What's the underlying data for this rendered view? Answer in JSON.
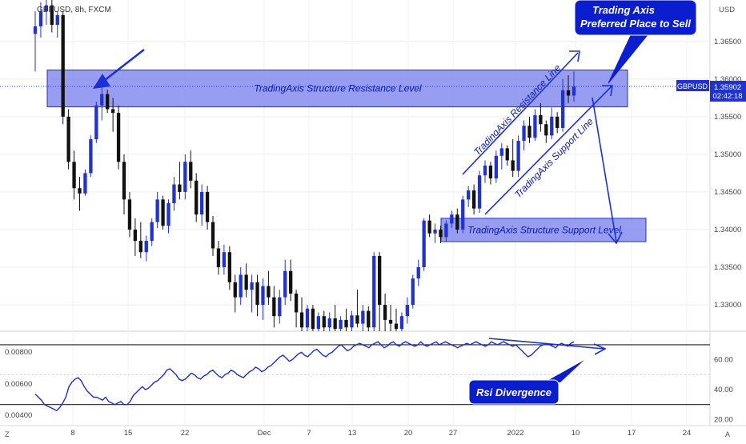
{
  "header": {
    "symbol_info": "GBPUSD, 8h, FXCM",
    "currency": "USD"
  },
  "price_tag": {
    "symbol": "GBPUSD",
    "price": "1.35902",
    "countdown": "02:42:18"
  },
  "annotations": {
    "sell_callout_line1": "Trading Axis",
    "sell_callout_line2": "Preferred Place to Sell",
    "resistance_zone": "TradingAxis Structure Resistance Level",
    "support_zone": "TradingAxis Structure Support Level",
    "resistance_line": "TradingAxis Resistance Line",
    "support_line": "TradingAxis Support Line",
    "rsi_callout": "Rsi Divergence"
  },
  "time_axis": {
    "left_marker": "Z",
    "right_marker": "A",
    "labels": [
      "8",
      "15",
      "22",
      "Dec",
      "7",
      "13",
      "20",
      "27",
      "2022",
      "10",
      "17",
      "24"
    ]
  },
  "colors": {
    "bull": "#2132d3",
    "bear": "#111111",
    "zone_fill": "#6f77ea",
    "zone_border": "#2130c8",
    "annotation_blue": "#1a2fd6",
    "callout_bg": "#0a1ed0",
    "rsi_line": "#1e2ec8",
    "price_tag_bg": "#2132d3"
  },
  "chart_data": [
    {
      "type": "candlestick",
      "title": "GBPUSD, 8h, FXCM",
      "y_ticks": [
        "1.36500",
        "1.36000",
        "1.35500",
        "1.35000",
        "1.34500",
        "1.34000",
        "1.33500",
        "1.33000"
      ],
      "ylim": [
        1.3265,
        1.3705
      ],
      "current_price": 1.35902,
      "resistance_zone": [
        1.3563,
        1.3612
      ],
      "support_zone": [
        1.3384,
        1.3415
      ],
      "candles": [
        {
          "o": 1.366,
          "h": 1.369,
          "l": 1.361,
          "c": 1.367
        },
        {
          "o": 1.367,
          "h": 1.3702,
          "l": 1.3655,
          "c": 1.369
        },
        {
          "o": 1.369,
          "h": 1.371,
          "l": 1.3672,
          "c": 1.3698
        },
        {
          "o": 1.3698,
          "h": 1.3705,
          "l": 1.3662,
          "c": 1.3672
        },
        {
          "o": 1.3672,
          "h": 1.369,
          "l": 1.3655,
          "c": 1.3685
        },
        {
          "o": 1.3685,
          "h": 1.369,
          "l": 1.354,
          "c": 1.355
        },
        {
          "o": 1.355,
          "h": 1.356,
          "l": 1.348,
          "c": 1.349
        },
        {
          "o": 1.349,
          "h": 1.3505,
          "l": 1.344,
          "c": 1.3455
        },
        {
          "o": 1.3455,
          "h": 1.347,
          "l": 1.3425,
          "c": 1.3448
        },
        {
          "o": 1.3448,
          "h": 1.348,
          "l": 1.3445,
          "c": 1.3475
        },
        {
          "o": 1.3475,
          "h": 1.3525,
          "l": 1.347,
          "c": 1.352
        },
        {
          "o": 1.352,
          "h": 1.357,
          "l": 1.3515,
          "c": 1.3565
        },
        {
          "o": 1.3565,
          "h": 1.36,
          "l": 1.3545,
          "c": 1.358
        },
        {
          "o": 1.358,
          "h": 1.3586,
          "l": 1.3555,
          "c": 1.356
        },
        {
          "o": 1.356,
          "h": 1.3575,
          "l": 1.353,
          "c": 1.3555
        },
        {
          "o": 1.3555,
          "h": 1.3565,
          "l": 1.348,
          "c": 1.349
        },
        {
          "o": 1.349,
          "h": 1.35,
          "l": 1.342,
          "c": 1.344
        },
        {
          "o": 1.344,
          "h": 1.345,
          "l": 1.339,
          "c": 1.34
        },
        {
          "o": 1.34,
          "h": 1.3415,
          "l": 1.3365,
          "c": 1.3385
        },
        {
          "o": 1.3385,
          "h": 1.341,
          "l": 1.3362,
          "c": 1.337
        },
        {
          "o": 1.337,
          "h": 1.3392,
          "l": 1.3358,
          "c": 1.3385
        },
        {
          "o": 1.3385,
          "h": 1.3415,
          "l": 1.3378,
          "c": 1.341
        },
        {
          "o": 1.341,
          "h": 1.345,
          "l": 1.3402,
          "c": 1.344
        },
        {
          "o": 1.344,
          "h": 1.3445,
          "l": 1.34,
          "c": 1.3405
        },
        {
          "o": 1.3405,
          "h": 1.344,
          "l": 1.3395,
          "c": 1.3435
        },
        {
          "o": 1.3435,
          "h": 1.347,
          "l": 1.3425,
          "c": 1.346
        },
        {
          "o": 1.346,
          "h": 1.349,
          "l": 1.344,
          "c": 1.345
        },
        {
          "o": 1.345,
          "h": 1.35,
          "l": 1.344,
          "c": 1.349
        },
        {
          "o": 1.349,
          "h": 1.3505,
          "l": 1.3455,
          "c": 1.3465
        },
        {
          "o": 1.3465,
          "h": 1.3475,
          "l": 1.341,
          "c": 1.342
        },
        {
          "o": 1.342,
          "h": 1.346,
          "l": 1.3405,
          "c": 1.345
        },
        {
          "o": 1.345,
          "h": 1.3458,
          "l": 1.34,
          "c": 1.341
        },
        {
          "o": 1.341,
          "h": 1.3418,
          "l": 1.3365,
          "c": 1.3375
        },
        {
          "o": 1.3375,
          "h": 1.3385,
          "l": 1.334,
          "c": 1.335
        },
        {
          "o": 1.335,
          "h": 1.338,
          "l": 1.334,
          "c": 1.337
        },
        {
          "o": 1.337,
          "h": 1.3378,
          "l": 1.332,
          "c": 1.333
        },
        {
          "o": 1.333,
          "h": 1.334,
          "l": 1.329,
          "c": 1.331
        },
        {
          "o": 1.331,
          "h": 1.335,
          "l": 1.33,
          "c": 1.334
        },
        {
          "o": 1.334,
          "h": 1.3355,
          "l": 1.331,
          "c": 1.332
        },
        {
          "o": 1.332,
          "h": 1.334,
          "l": 1.329,
          "c": 1.333
        },
        {
          "o": 1.333,
          "h": 1.334,
          "l": 1.3285,
          "c": 1.33
        },
        {
          "o": 1.33,
          "h": 1.3335,
          "l": 1.328,
          "c": 1.3325
        },
        {
          "o": 1.3325,
          "h": 1.3345,
          "l": 1.33,
          "c": 1.331
        },
        {
          "o": 1.331,
          "h": 1.3325,
          "l": 1.327,
          "c": 1.3285
        },
        {
          "o": 1.3285,
          "h": 1.332,
          "l": 1.3275,
          "c": 1.331
        },
        {
          "o": 1.331,
          "h": 1.336,
          "l": 1.33,
          "c": 1.3345
        },
        {
          "o": 1.3345,
          "h": 1.336,
          "l": 1.3305,
          "c": 1.3315
        },
        {
          "o": 1.3315,
          "h": 1.332,
          "l": 1.327,
          "c": 1.329
        },
        {
          "o": 1.329,
          "h": 1.331,
          "l": 1.3265,
          "c": 1.327
        },
        {
          "o": 1.327,
          "h": 1.33,
          "l": 1.3262,
          "c": 1.3295
        },
        {
          "o": 1.3295,
          "h": 1.33,
          "l": 1.3262,
          "c": 1.3268
        },
        {
          "o": 1.3268,
          "h": 1.329,
          "l": 1.3262,
          "c": 1.3285
        },
        {
          "o": 1.3285,
          "h": 1.3292,
          "l": 1.3262,
          "c": 1.327
        },
        {
          "o": 1.327,
          "h": 1.329,
          "l": 1.3262,
          "c": 1.3282
        },
        {
          "o": 1.3282,
          "h": 1.33,
          "l": 1.3262,
          "c": 1.3268
        },
        {
          "o": 1.3268,
          "h": 1.3285,
          "l": 1.3262,
          "c": 1.328
        },
        {
          "o": 1.328,
          "h": 1.3295,
          "l": 1.3262,
          "c": 1.327
        },
        {
          "o": 1.327,
          "h": 1.3292,
          "l": 1.3262,
          "c": 1.3286
        },
        {
          "o": 1.3286,
          "h": 1.332,
          "l": 1.327,
          "c": 1.3275
        },
        {
          "o": 1.3275,
          "h": 1.33,
          "l": 1.3262,
          "c": 1.3292
        },
        {
          "o": 1.3292,
          "h": 1.3298,
          "l": 1.3262,
          "c": 1.327
        },
        {
          "o": 1.327,
          "h": 1.337,
          "l": 1.3262,
          "c": 1.3365
        },
        {
          "o": 1.3365,
          "h": 1.337,
          "l": 1.3262,
          "c": 1.33
        },
        {
          "o": 1.33,
          "h": 1.3315,
          "l": 1.3262,
          "c": 1.328
        },
        {
          "o": 1.328,
          "h": 1.33,
          "l": 1.3262,
          "c": 1.3275
        },
        {
          "o": 1.3275,
          "h": 1.3295,
          "l": 1.3262,
          "c": 1.3268
        },
        {
          "o": 1.3268,
          "h": 1.329,
          "l": 1.3262,
          "c": 1.3285
        },
        {
          "o": 1.3285,
          "h": 1.331,
          "l": 1.3275,
          "c": 1.33
        },
        {
          "o": 1.33,
          "h": 1.334,
          "l": 1.3295,
          "c": 1.3335
        },
        {
          "o": 1.3335,
          "h": 1.336,
          "l": 1.3325,
          "c": 1.335
        },
        {
          "o": 1.335,
          "h": 1.3415,
          "l": 1.3345,
          "c": 1.3412
        },
        {
          "o": 1.3412,
          "h": 1.342,
          "l": 1.339,
          "c": 1.3395
        },
        {
          "o": 1.3395,
          "h": 1.3408,
          "l": 1.3382,
          "c": 1.34
        },
        {
          "o": 1.34,
          "h": 1.3405,
          "l": 1.3382,
          "c": 1.339
        },
        {
          "o": 1.339,
          "h": 1.3412,
          "l": 1.3384,
          "c": 1.3408
        },
        {
          "o": 1.3408,
          "h": 1.3425,
          "l": 1.3402,
          "c": 1.342
        },
        {
          "o": 1.342,
          "h": 1.3428,
          "l": 1.3395,
          "c": 1.34
        },
        {
          "o": 1.34,
          "h": 1.3445,
          "l": 1.3395,
          "c": 1.344
        },
        {
          "o": 1.344,
          "h": 1.3458,
          "l": 1.343,
          "c": 1.3452
        },
        {
          "o": 1.3452,
          "h": 1.346,
          "l": 1.342,
          "c": 1.3428
        },
        {
          "o": 1.3428,
          "h": 1.3478,
          "l": 1.3422,
          "c": 1.3472
        },
        {
          "o": 1.3472,
          "h": 1.3492,
          "l": 1.3462,
          "c": 1.3485
        },
        {
          "o": 1.3485,
          "h": 1.349,
          "l": 1.346,
          "c": 1.3468
        },
        {
          "o": 1.3468,
          "h": 1.3505,
          "l": 1.3462,
          "c": 1.3498
        },
        {
          "o": 1.3498,
          "h": 1.3515,
          "l": 1.348,
          "c": 1.3508
        },
        {
          "o": 1.3508,
          "h": 1.3512,
          "l": 1.3485,
          "c": 1.3492
        },
        {
          "o": 1.3492,
          "h": 1.352,
          "l": 1.347,
          "c": 1.3478
        },
        {
          "o": 1.3478,
          "h": 1.3525,
          "l": 1.347,
          "c": 1.3518
        },
        {
          "o": 1.3518,
          "h": 1.3545,
          "l": 1.3505,
          "c": 1.3538
        },
        {
          "o": 1.3538,
          "h": 1.355,
          "l": 1.3515,
          "c": 1.3522
        },
        {
          "o": 1.3522,
          "h": 1.356,
          "l": 1.3518,
          "c": 1.3552
        },
        {
          "o": 1.3552,
          "h": 1.3568,
          "l": 1.353,
          "c": 1.354
        },
        {
          "o": 1.354,
          "h": 1.3545,
          "l": 1.3515,
          "c": 1.3525
        },
        {
          "o": 1.3525,
          "h": 1.3562,
          "l": 1.352,
          "c": 1.355
        },
        {
          "o": 1.355,
          "h": 1.3556,
          "l": 1.3528,
          "c": 1.3535
        },
        {
          "o": 1.3535,
          "h": 1.36,
          "l": 1.353,
          "c": 1.3585
        },
        {
          "o": 1.3585,
          "h": 1.3605,
          "l": 1.3568,
          "c": 1.3578
        },
        {
          "o": 1.3578,
          "h": 1.361,
          "l": 1.357,
          "c": 1.359
        }
      ]
    },
    {
      "type": "line",
      "title": "RSI",
      "y_ticks": [
        "60.00",
        "40.00",
        "20.00"
      ],
      "left_ticks": [
        "0.00800",
        "0.00600",
        "0.00400"
      ],
      "ylim": [
        17,
        78
      ],
      "levels": [
        70,
        30
      ],
      "values": [
        37,
        35,
        33,
        30,
        29,
        28,
        27,
        26,
        28,
        31,
        35,
        42,
        45,
        47,
        48,
        46,
        42,
        39,
        37,
        35,
        35,
        34,
        33,
        35,
        32,
        31,
        30,
        31,
        32,
        30,
        30,
        32,
        36,
        38,
        40,
        42,
        40,
        41,
        43,
        45,
        46,
        48,
        50,
        53,
        54,
        52,
        50,
        47,
        46,
        47,
        49,
        51,
        50,
        48,
        47,
        49,
        50,
        52,
        53,
        51,
        49,
        48,
        50,
        51,
        53,
        52,
        50,
        49,
        48,
        50,
        52,
        53,
        55,
        54,
        52,
        53,
        55,
        56,
        58,
        60,
        62,
        63,
        61,
        59,
        60,
        62,
        64,
        65,
        63,
        62,
        64,
        66,
        67,
        65,
        63,
        62,
        64,
        65,
        67,
        69,
        70,
        68,
        66,
        67,
        69,
        70,
        71,
        70,
        69,
        68,
        70,
        71,
        72,
        70,
        68,
        69,
        71,
        72,
        70,
        69,
        71,
        72,
        71,
        70,
        69,
        70,
        72,
        70,
        69,
        70,
        71,
        72,
        70,
        71,
        72,
        71,
        70,
        69,
        68,
        69,
        70,
        71,
        70,
        71,
        72,
        71,
        70,
        69,
        70,
        72,
        71,
        70,
        71,
        72,
        71,
        70,
        69,
        70,
        68,
        66,
        64,
        62,
        63,
        65,
        67,
        69,
        70,
        71,
        70,
        69,
        68,
        70,
        71,
        70,
        69,
        71,
        72
      ]
    }
  ]
}
